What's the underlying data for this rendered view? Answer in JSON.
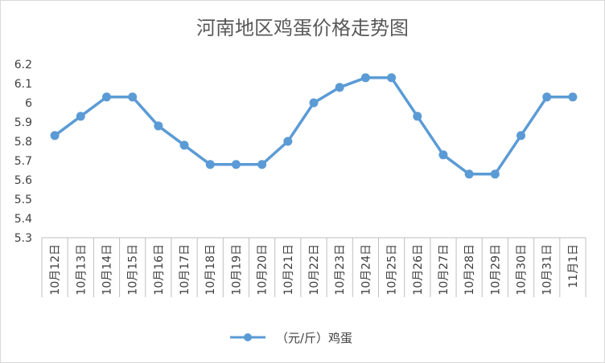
{
  "chart_data": {
    "type": "line",
    "title": "河南地区鸡蛋价格走势图",
    "categories": [
      "10月12日",
      "10月13日",
      "10月14日",
      "10月15日",
      "10月16日",
      "10月17日",
      "10月18日",
      "10月19日",
      "10月20日",
      "10月21日",
      "10月22日",
      "10月23日",
      "10月24日",
      "10月25日",
      "10月26日",
      "10月27日",
      "10月28日",
      "10月29日",
      "10月30日",
      "10月31日",
      "11月1日"
    ],
    "series": [
      {
        "name": "（元/斤）鸡蛋",
        "values": [
          5.83,
          5.93,
          6.03,
          6.03,
          5.88,
          5.78,
          5.68,
          5.68,
          5.68,
          5.8,
          6.0,
          6.08,
          6.13,
          6.13,
          5.93,
          5.73,
          5.63,
          5.63,
          5.83,
          6.03,
          6.03
        ]
      }
    ],
    "ylim": [
      5.3,
      6.2
    ],
    "yticks": [
      "5.3",
      "5.4",
      "5.5",
      "5.6",
      "5.7",
      "5.8",
      "5.9",
      "6",
      "6.1",
      "6.2"
    ],
    "xlabel": "",
    "ylabel": "",
    "grid": false,
    "legend_position": "bottom",
    "colors": {
      "line": "#5b9bd5",
      "axis": "#bfbfbf",
      "text": "#404040",
      "title": "#595959"
    }
  }
}
